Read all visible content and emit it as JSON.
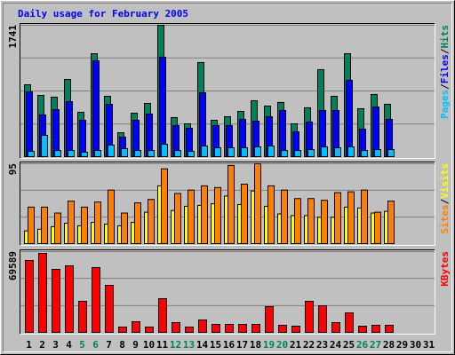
{
  "chart_data": [
    {
      "type": "bar",
      "title": "Daily usage for February 2005",
      "ylim": [
        0,
        1741
      ],
      "yticks": [
        1741
      ],
      "grid": true,
      "legend_separator": "/",
      "series": [
        {
          "name": "Hits",
          "color": "#00805c",
          "values": [
            958,
            818,
            795,
            1028,
            596,
            1367,
            806,
            327,
            584,
            713,
            1741,
            526,
            444,
            1251,
            491,
            538,
            608,
            748,
            678,
            725,
            444,
            655,
            1157,
            806,
            1367,
            643,
            830,
            701,
            null,
            null,
            null
          ]
        },
        {
          "name": "Files",
          "color": "#0000ff",
          "values": [
            865,
            561,
            631,
            736,
            491,
            1274,
            701,
            269,
            491,
            573,
            1321,
            421,
            386,
            853,
            421,
            421,
            503,
            479,
            538,
            620,
            339,
            468,
            620,
            620,
            1017,
            374,
            666,
            503,
            null,
            null,
            null
          ]
        },
        {
          "name": "Pages",
          "color": "#00c0ff",
          "values": [
            82,
            292,
            93,
            93,
            70,
            93,
            164,
            117,
            93,
            93,
            175,
            93,
            82,
            152,
            129,
            129,
            129,
            140,
            152,
            93,
            93,
            105,
            140,
            129,
            140,
            93,
            105,
            105,
            null,
            null,
            null
          ]
        }
      ]
    },
    {
      "type": "bar",
      "ylim": [
        0,
        95
      ],
      "yticks": [
        95
      ],
      "grid": true,
      "legend_separator": "/",
      "series": [
        {
          "name": "Visits",
          "color": "#ffff00",
          "values": [
            16,
            18,
            21,
            25,
            22,
            26,
            24,
            22,
            26,
            38,
            69,
            40,
            45,
            46,
            48,
            57,
            47,
            63,
            45,
            36,
            34,
            34,
            32,
            32,
            44,
            43,
            37,
            39,
            null,
            null,
            null
          ]
        },
        {
          "name": "Sites",
          "color": "#ff8000",
          "values": [
            44,
            44,
            37,
            51,
            44,
            50,
            64,
            37,
            49,
            53,
            89,
            60,
            64,
            69,
            67,
            93,
            71,
            95,
            69,
            64,
            54,
            54,
            52,
            61,
            62,
            64,
            38,
            51,
            null,
            null,
            null
          ]
        }
      ]
    },
    {
      "type": "bar",
      "ylim": [
        0,
        69589
      ],
      "yticks": [
        69589
      ],
      "grid": true,
      "series": [
        {
          "name": "KBytes",
          "color": "#ff0000",
          "values": [
            62023,
            68076,
            54462,
            57487,
            27231,
            55974,
            40847,
            5295,
            9833,
            5295,
            29500,
            9077,
            5295,
            11346,
            7564,
            7564,
            7564,
            7564,
            22692,
            6808,
            6051,
            27231,
            23448,
            9077,
            17397,
            6051,
            6808,
            6808,
            null,
            null,
            null
          ]
        }
      ],
      "categories": [
        "1",
        "2",
        "3",
        "4",
        "5",
        "6",
        "7",
        "8",
        "9",
        "10",
        "11",
        "12",
        "13",
        "14",
        "15",
        "16",
        "17",
        "18",
        "19",
        "20",
        "21",
        "22",
        "23",
        "24",
        "25",
        "26",
        "27",
        "28",
        "29",
        "30",
        "31"
      ],
      "category_colors": [
        "#000000",
        "#000000",
        "#000000",
        "#000000",
        "#00805c",
        "#00805c",
        "#000000",
        "#000000",
        "#000000",
        "#000000",
        "#000000",
        "#00805c",
        "#00805c",
        "#000000",
        "#000000",
        "#000000",
        "#000000",
        "#000000",
        "#00805c",
        "#00805c",
        "#000000",
        "#000000",
        "#000000",
        "#000000",
        "#000000",
        "#00805c",
        "#00805c",
        "#000000",
        "#000000",
        "#000000",
        "#000000"
      ]
    }
  ]
}
